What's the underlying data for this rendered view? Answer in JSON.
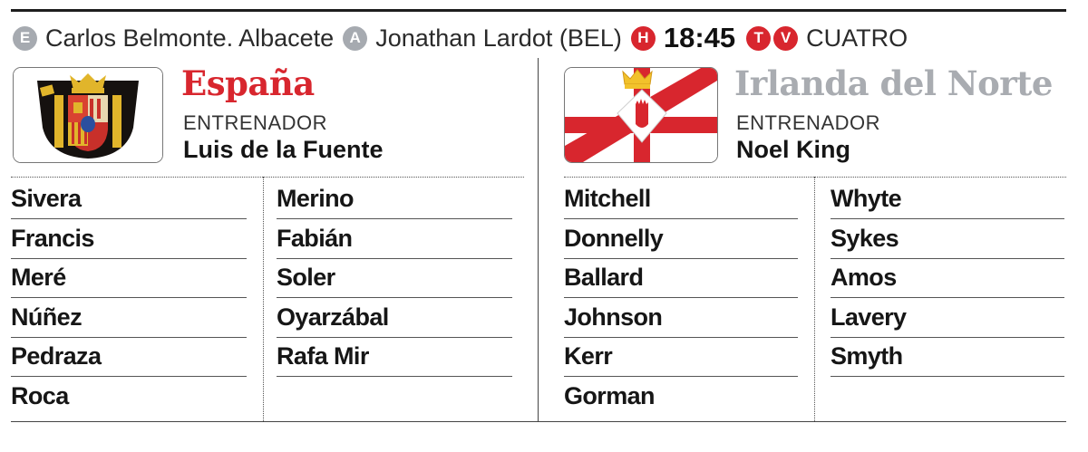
{
  "info": {
    "referee_badge": "E",
    "referee": "Carlos Belmonte. Albacete",
    "assistant_badge": "A",
    "assistant": "Jonathan Lardot (BEL)",
    "time_badge": "H",
    "time": "18:45",
    "tv_badges": [
      "T",
      "V"
    ],
    "channel": "CUATRO"
  },
  "home": {
    "name": "España",
    "coach_label": "ENTRENADOR",
    "coach": "Luis de la Fuente",
    "col1": [
      "Sivera",
      "Francis",
      "Meré",
      "Núñez",
      "Pedraza",
      "Roca"
    ],
    "col2": [
      "Merino",
      "Fabián",
      "Soler",
      "Oyarzábal",
      "Rafa Mir"
    ]
  },
  "away": {
    "name": "Irlanda del Norte",
    "coach_label": "ENTRENADOR",
    "coach": "Noel King",
    "col1": [
      "Mitchell",
      "Donnelly",
      "Ballard",
      "Johnson",
      "Kerr",
      "Gorman"
    ],
    "col2": [
      "Whyte",
      "Sykes",
      "Amos",
      "Lavery",
      "Smyth"
    ]
  },
  "colors": {
    "accent_red": "#d8262e",
    "grey_title": "#a9acb1",
    "grey_badge": "#a6aab0"
  }
}
